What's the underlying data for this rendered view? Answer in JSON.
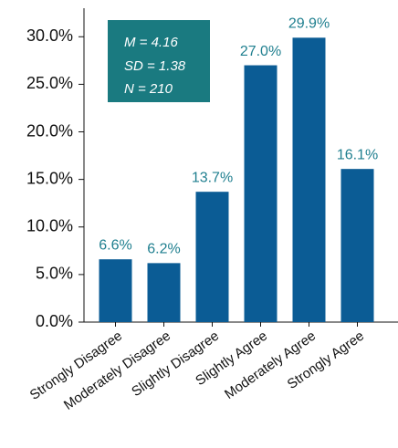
{
  "chart_data": {
    "type": "bar",
    "categories": [
      "Strongly Disagree",
      "Moderately Disagree",
      "Slightly Disagree",
      "Slightly Agree",
      "Moderately Agree",
      "Strongly Agree"
    ],
    "values": [
      6.6,
      6.2,
      13.7,
      27.0,
      29.9,
      16.1
    ],
    "value_labels": [
      "6.6%",
      "6.2%",
      "13.7%",
      "27.0%",
      "29.9%",
      "16.1%"
    ],
    "color": "#0b5c95",
    "ylim": [
      0,
      33
    ],
    "yticks": [
      {
        "value": 0,
        "label": "0.0%"
      },
      {
        "value": 5,
        "label": "5.0%"
      },
      {
        "value": 10,
        "label": "10.0%"
      },
      {
        "value": 15,
        "label": "15.0%"
      },
      {
        "value": 20,
        "label": "20.0%"
      },
      {
        "value": 25,
        "label": "25.0%"
      },
      {
        "value": 30,
        "label": "30.0%"
      }
    ],
    "grid": false,
    "annotation": [
      "M = 4.16",
      "SD = 1.38",
      "N = 210"
    ]
  }
}
